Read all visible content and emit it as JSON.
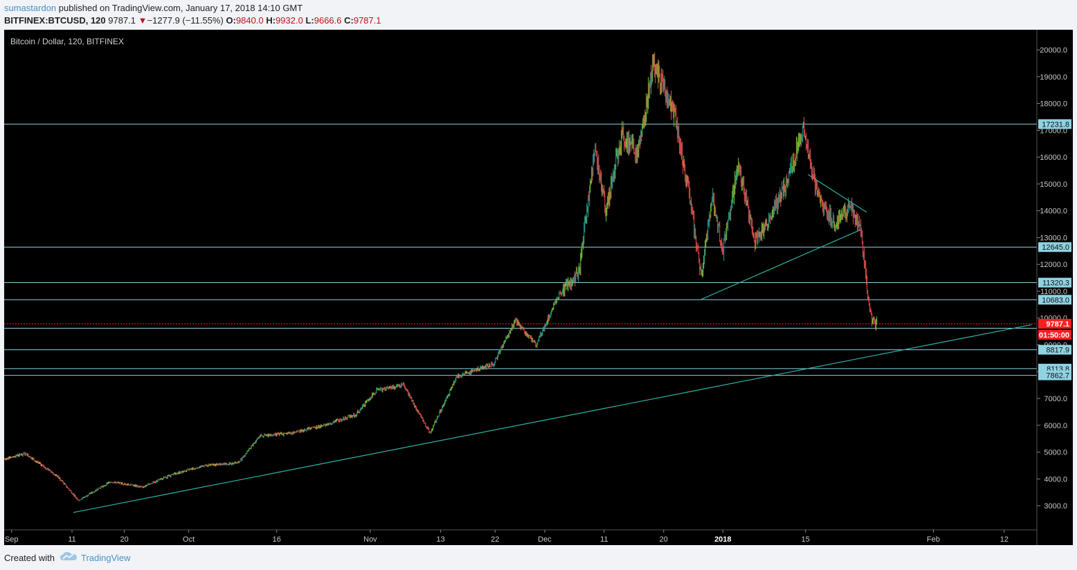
{
  "header": {
    "author": "sumastardon",
    "publish_text": "published on TradingView.com, January 17, 2018 14:10 GMT",
    "symbol": "BITFINEX:BTCUSD, 120",
    "last": "9787.1",
    "change_arrow": "▼",
    "change": "−1277.9 (−11.55%)",
    "o_label": "O:",
    "o_value": "9840.0",
    "h_label": "H:",
    "h_value": "9932.0",
    "l_label": "L:",
    "l_value": "9666.6",
    "c_label": "C:",
    "c_value": "9787.1"
  },
  "footer": {
    "created_with": "Created with",
    "brand": "TradingView",
    "logo_icon": "tradingview-cloud-icon"
  },
  "colors": {
    "background": "#000000",
    "up": "#26a69a",
    "up_bright": "#7cd43a",
    "down": "#ef5350",
    "level_line": "#8fd3e3",
    "trend_line": "#2fb5a5",
    "price_line": "#ff2a2a",
    "axis_text": "#c8c8c8",
    "level_label_bg": "#8fd3e3",
    "price_label_bg": "#ff1e1e"
  },
  "chart_data": {
    "type": "candlestick",
    "title": "Bitcoin / Dollar, 120, BITFINEX",
    "x_axis_labels": [
      "Sep",
      "11",
      "20",
      "Oct",
      "16",
      "Nov",
      "13",
      "22",
      "Dec",
      "11",
      "20",
      "2018",
      "15",
      "Feb",
      "12"
    ],
    "x_axis_bold": [
      "2018"
    ],
    "y_axis_labels": [
      "3000.0",
      "4000.0",
      "5000.0",
      "6000.0",
      "7000.0",
      "8000.0",
      "9000.0",
      "10000.0",
      "11000.0",
      "12000.0",
      "13000.0",
      "14000.0",
      "15000.0",
      "16000.0",
      "17000.0",
      "18000.0",
      "19000.0",
      "20000.0"
    ],
    "ylim": [
      2100,
      20750
    ],
    "price_path": [
      {
        "t": 0,
        "p": 4750
      },
      {
        "t": 4,
        "p": 4950
      },
      {
        "t": 10,
        "p": 4100
      },
      {
        "t": 14,
        "p": 3200
      },
      {
        "t": 20,
        "p": 3900
      },
      {
        "t": 26,
        "p": 3700
      },
      {
        "t": 32,
        "p": 4200
      },
      {
        "t": 38,
        "p": 4500
      },
      {
        "t": 44,
        "p": 4600
      },
      {
        "t": 48,
        "p": 5600
      },
      {
        "t": 54,
        "p": 5700
      },
      {
        "t": 60,
        "p": 6000
      },
      {
        "t": 66,
        "p": 6400
      },
      {
        "t": 70,
        "p": 7300
      },
      {
        "t": 75,
        "p": 7500
      },
      {
        "t": 80,
        "p": 5700
      },
      {
        "t": 85,
        "p": 7800
      },
      {
        "t": 92,
        "p": 8300
      },
      {
        "t": 96,
        "p": 9900
      },
      {
        "t": 100,
        "p": 9000
      },
      {
        "t": 104,
        "p": 10800
      },
      {
        "t": 108,
        "p": 11700
      },
      {
        "t": 111,
        "p": 16400
      },
      {
        "t": 113,
        "p": 14000
      },
      {
        "t": 116,
        "p": 16800
      },
      {
        "t": 119,
        "p": 16200
      },
      {
        "t": 122,
        "p": 19500
      },
      {
        "t": 126,
        "p": 17600
      },
      {
        "t": 129,
        "p": 14200
      },
      {
        "t": 131,
        "p": 11500
      },
      {
        "t": 133,
        "p": 14500
      },
      {
        "t": 135,
        "p": 12500
      },
      {
        "t": 138,
        "p": 15800
      },
      {
        "t": 141,
        "p": 12800
      },
      {
        "t": 144,
        "p": 13800
      },
      {
        "t": 147,
        "p": 15000
      },
      {
        "t": 150,
        "p": 17100
      },
      {
        "t": 153,
        "p": 14500
      },
      {
        "t": 156,
        "p": 13500
      },
      {
        "t": 159,
        "p": 14200
      },
      {
        "t": 161,
        "p": 13200
      },
      {
        "t": 162,
        "p": 11200
      },
      {
        "t": 163,
        "p": 9900
      },
      {
        "t": 164,
        "p": 9787.1
      }
    ],
    "time_range": [
      0,
      194
    ],
    "horizontal_levels": [
      {
        "price": 17231.8,
        "label": "17231.8"
      },
      {
        "price": 12645.0,
        "label": "12645.0"
      },
      {
        "price": 11320.3,
        "label": "11320.3"
      },
      {
        "price": 10683.0,
        "label": "10683.0"
      },
      {
        "price": 9620,
        "label": ""
      },
      {
        "price": 8817.9,
        "label": "8817.9"
      },
      {
        "price": 8113.8,
        "label": "8113.8"
      },
      {
        "price": 7862.7,
        "label": "7862.7"
      }
    ],
    "last_price": {
      "price": 9787.1,
      "label": "9787.1",
      "countdown": "01:50:00"
    },
    "trend_lines": [
      {
        "from": {
          "t": 13,
          "p": 2750
        },
        "to": {
          "t": 193,
          "p": 9750
        }
      },
      {
        "from": {
          "t": 131,
          "p": 10700
        },
        "to": {
          "t": 161,
          "p": 13300
        }
      },
      {
        "from": {
          "t": 151,
          "p": 15350
        },
        "to": {
          "t": 162,
          "p": 13950
        }
      }
    ],
    "grid": false,
    "legend_position": "top-left"
  }
}
